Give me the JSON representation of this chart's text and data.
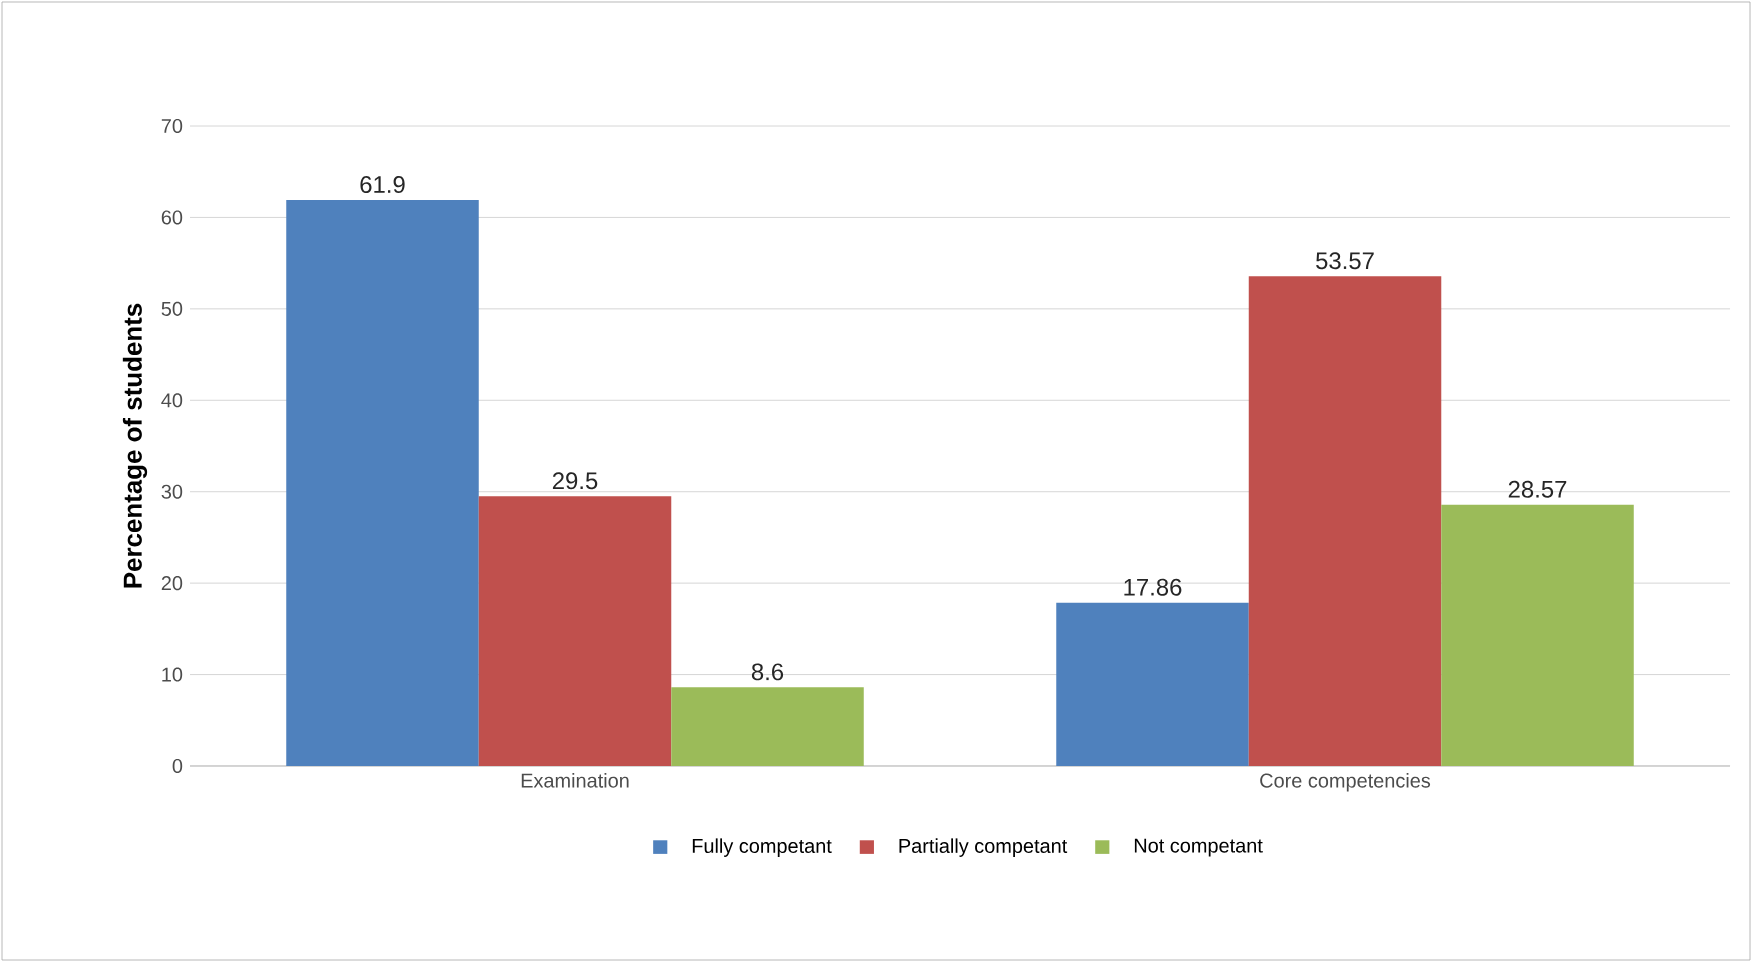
{
  "chart_data": {
    "type": "bar",
    "ylabel": "Percentage of students",
    "categories": [
      "Examination",
      "Core competencies"
    ],
    "series": [
      {
        "name": "Fully competant",
        "color": "#4f81bd",
        "values": [
          61.9,
          17.86
        ]
      },
      {
        "name": "Partially competant",
        "color": "#c0504d",
        "values": [
          29.5,
          53.57
        ]
      },
      {
        "name": "Not competant",
        "color": "#9bbb59",
        "values": [
          8.6,
          28.57
        ]
      }
    ],
    "ylim": [
      0,
      70
    ],
    "yticks": [
      0,
      10,
      20,
      30,
      40,
      50,
      60,
      70
    ],
    "grid": "y",
    "legend": "bottom",
    "data_labels": true
  }
}
